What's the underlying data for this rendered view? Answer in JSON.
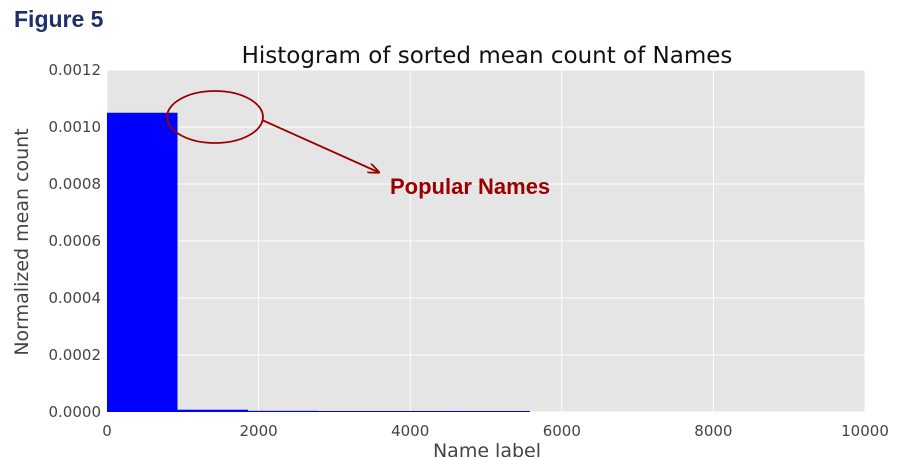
{
  "figure_label": "Figure 5",
  "colors": {
    "bar": "#0000ff",
    "plot_bg": "#e5e5e5",
    "grid": "#ffffff",
    "annotation": "#990000",
    "figure_label": "#1f2f6b"
  },
  "chart_data": {
    "type": "bar",
    "title": "Histogram of sorted mean count of Names",
    "xlabel": "Name label",
    "ylabel": "Normalized mean count",
    "xlim": [
      0,
      10000
    ],
    "ylim": [
      0,
      0.0012
    ],
    "xticks": [
      "0",
      "2000",
      "4000",
      "6000",
      "8000",
      "10000"
    ],
    "yticks": [
      "0.0000",
      "0.0002",
      "0.0004",
      "0.0006",
      "0.0008",
      "0.0010",
      "0.0012"
    ],
    "grid": true,
    "bins": [
      {
        "x0": 0,
        "x1": 930,
        "value": 0.00105
      },
      {
        "x0": 930,
        "x1": 1860,
        "value": 8e-06
      },
      {
        "x0": 1860,
        "x1": 2790,
        "value": 4e-06
      },
      {
        "x0": 2790,
        "x1": 3720,
        "value": 2e-06
      },
      {
        "x0": 3720,
        "x1": 4650,
        "value": 2e-06
      },
      {
        "x0": 4650,
        "x1": 5580,
        "value": 1e-06
      }
    ],
    "annotation": {
      "text": "Popular Names"
    }
  }
}
